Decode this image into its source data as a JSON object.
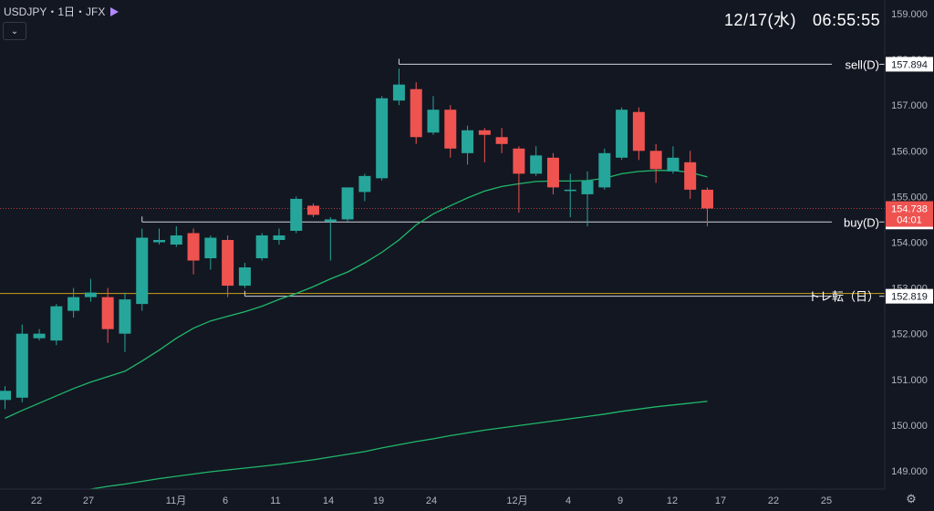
{
  "header": {
    "symbol": "USDJPY・1日・JFX",
    "date": "12/17(水)",
    "time": "06:55:55",
    "collapse_icon": "chevron-down-icon",
    "flag_icon": "flag-icon"
  },
  "footer": {
    "settings_icon": "gear-icon"
  },
  "colors": {
    "background": "#131722",
    "up": "#26a69a",
    "down": "#ef5350",
    "ma_line": "#1fb86a",
    "level_line": "#d1d4dc",
    "trend_line": "#c8a31b",
    "current_price_bg": "#ef5350"
  },
  "chart_data": {
    "type": "candlestick",
    "title": "",
    "ylim": [
      148.6,
      159.3
    ],
    "y_ticks": [
      149.0,
      150.0,
      151.0,
      152.0,
      153.0,
      154.0,
      155.0,
      156.0,
      157.0,
      158.0,
      159.0
    ],
    "x_tick_labels": [
      "22",
      "27",
      "11月",
      "6",
      "11",
      "14",
      "19",
      "24",
      "12月",
      "4",
      "9",
      "12",
      "17",
      "22",
      "25"
    ],
    "candles": [
      {
        "o": 150.55,
        "h": 150.85,
        "l": 150.35,
        "c": 150.75
      },
      {
        "o": 150.6,
        "h": 152.2,
        "l": 150.5,
        "c": 152.0
      },
      {
        "o": 151.9,
        "h": 152.1,
        "l": 151.85,
        "c": 152.0
      },
      {
        "o": 151.85,
        "h": 152.65,
        "l": 151.75,
        "c": 152.6
      },
      {
        "o": 152.5,
        "h": 153.0,
        "l": 152.35,
        "c": 152.8
      },
      {
        "o": 152.8,
        "h": 153.2,
        "l": 152.7,
        "c": 152.9
      },
      {
        "o": 152.8,
        "h": 153.0,
        "l": 151.8,
        "c": 152.1
      },
      {
        "o": 152.0,
        "h": 152.9,
        "l": 151.6,
        "c": 152.75
      },
      {
        "o": 152.65,
        "h": 154.3,
        "l": 152.5,
        "c": 154.1
      },
      {
        "o": 154.0,
        "h": 154.3,
        "l": 153.95,
        "c": 154.05
      },
      {
        "o": 153.95,
        "h": 154.35,
        "l": 153.9,
        "c": 154.15
      },
      {
        "o": 154.2,
        "h": 154.3,
        "l": 153.3,
        "c": 153.6
      },
      {
        "o": 153.65,
        "h": 154.15,
        "l": 153.4,
        "c": 154.1
      },
      {
        "o": 154.05,
        "h": 154.15,
        "l": 152.8,
        "c": 153.05
      },
      {
        "o": 153.05,
        "h": 153.55,
        "l": 153.0,
        "c": 153.45
      },
      {
        "o": 153.65,
        "h": 154.2,
        "l": 153.6,
        "c": 154.15
      },
      {
        "o": 154.05,
        "h": 154.3,
        "l": 153.95,
        "c": 154.15
      },
      {
        "o": 154.25,
        "h": 155.0,
        "l": 154.2,
        "c": 154.95
      },
      {
        "o": 154.8,
        "h": 154.85,
        "l": 154.55,
        "c": 154.6
      },
      {
        "o": 154.45,
        "h": 154.55,
        "l": 153.6,
        "c": 154.5
      },
      {
        "o": 154.5,
        "h": 155.1,
        "l": 154.45,
        "c": 155.2
      },
      {
        "o": 155.1,
        "h": 155.5,
        "l": 154.9,
        "c": 155.45
      },
      {
        "o": 155.4,
        "h": 157.2,
        "l": 155.35,
        "c": 157.15
      },
      {
        "o": 157.1,
        "h": 157.8,
        "l": 157.0,
        "c": 157.45
      },
      {
        "o": 157.35,
        "h": 157.5,
        "l": 156.15,
        "c": 156.3
      },
      {
        "o": 156.4,
        "h": 157.2,
        "l": 156.35,
        "c": 156.9
      },
      {
        "o": 156.9,
        "h": 157.0,
        "l": 155.85,
        "c": 156.05
      },
      {
        "o": 155.95,
        "h": 156.55,
        "l": 155.7,
        "c": 156.45
      },
      {
        "o": 156.45,
        "h": 156.5,
        "l": 155.75,
        "c": 156.35
      },
      {
        "o": 156.3,
        "h": 156.5,
        "l": 155.95,
        "c": 156.15
      },
      {
        "o": 156.05,
        "h": 156.1,
        "l": 154.65,
        "c": 155.5
      },
      {
        "o": 155.5,
        "h": 156.1,
        "l": 155.45,
        "c": 155.9
      },
      {
        "o": 155.85,
        "h": 155.95,
        "l": 155.05,
        "c": 155.2
      },
      {
        "o": 155.15,
        "h": 155.5,
        "l": 154.55,
        "c": 155.15
      },
      {
        "o": 155.05,
        "h": 155.55,
        "l": 154.35,
        "c": 155.35
      },
      {
        "o": 155.2,
        "h": 156.05,
        "l": 155.15,
        "c": 155.95
      },
      {
        "o": 155.85,
        "h": 156.95,
        "l": 155.8,
        "c": 156.9
      },
      {
        "o": 156.85,
        "h": 156.95,
        "l": 155.8,
        "c": 156.0
      },
      {
        "o": 156.0,
        "h": 156.15,
        "l": 155.3,
        "c": 155.6
      },
      {
        "o": 155.55,
        "h": 156.1,
        "l": 155.5,
        "c": 155.85
      },
      {
        "o": 155.75,
        "h": 156.0,
        "l": 154.95,
        "c": 155.15
      },
      {
        "o": 155.15,
        "h": 155.2,
        "l": 154.35,
        "c": 154.74
      }
    ],
    "ma_short": [
      150.15,
      150.32,
      150.48,
      150.64,
      150.8,
      150.94,
      151.06,
      151.18,
      151.4,
      151.64,
      151.9,
      152.12,
      152.28,
      152.38,
      152.48,
      152.6,
      152.75,
      152.88,
      153.03,
      153.2,
      153.35,
      153.55,
      153.78,
      154.05,
      154.38,
      154.62,
      154.8,
      154.97,
      155.12,
      155.22,
      155.28,
      155.33,
      155.34,
      155.34,
      155.35,
      155.4,
      155.5,
      155.55,
      155.57,
      155.57,
      155.53,
      155.43
    ],
    "ma_long": [
      148.35,
      148.4,
      148.45,
      148.5,
      148.55,
      148.6,
      148.66,
      148.71,
      148.77,
      148.83,
      148.88,
      148.93,
      148.98,
      149.02,
      149.06,
      149.1,
      149.14,
      149.19,
      149.24,
      149.3,
      149.36,
      149.42,
      149.5,
      149.57,
      149.64,
      149.7,
      149.77,
      149.83,
      149.89,
      149.94,
      149.99,
      150.04,
      150.09,
      150.14,
      150.19,
      150.24,
      150.3,
      150.35,
      150.4,
      150.44,
      150.48,
      150.52
    ],
    "levels": [
      {
        "label": "sell(D)",
        "price": 157.894,
        "price_label": "157.894",
        "from_index": 23
      },
      {
        "label": "buy(D)",
        "price": 154.444,
        "price_label": "154.444",
        "from_index": 8
      },
      {
        "label": "トレ転（日）",
        "price": 152.819,
        "price_label": "152.819",
        "from_index": 14
      }
    ],
    "trend_price": 152.88,
    "current_price": {
      "price": 154.738,
      "price_label": "154.738",
      "countdown": "04:01"
    }
  }
}
